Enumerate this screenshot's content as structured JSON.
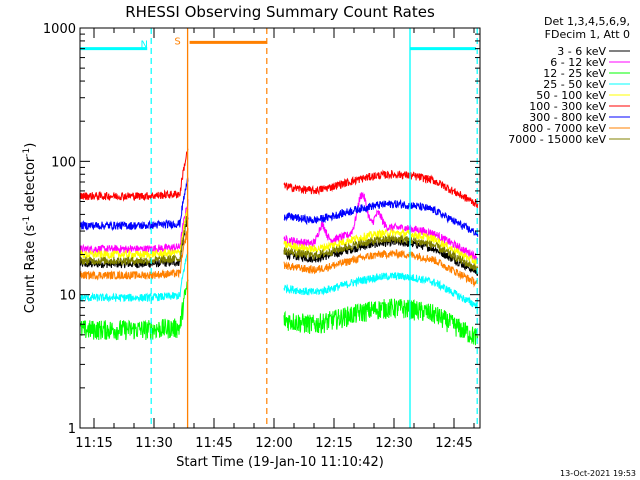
{
  "chart_data": {
    "type": "line",
    "title": "RHESSI Observing Summary Count Rates",
    "xlabel": "Start Time (19-Jan-10 11:10:42)",
    "ylabel": "Count Rate (s",
    "ylabel_sup": "-1",
    "ylabel_tail": " detector",
    "ylabel_close": ")",
    "yscale": "log",
    "ylim": [
      1,
      1000
    ],
    "xlim_minutes": [
      11.5,
      111.5
    ],
    "y_ticks": [
      1,
      10,
      100,
      1000
    ],
    "y_tick_labels": [
      "1",
      "10",
      "100",
      "1000"
    ],
    "x_ticks_minutes": [
      75,
      90,
      105,
      120,
      135,
      150,
      165
    ],
    "x_tick_labels": [
      "11:15",
      "11:30",
      "11:45",
      "12:00",
      "12:15",
      "12:30",
      "12:45"
    ],
    "legend_header": [
      "Det 1,3,4,5,6,9,",
      "FDecim 1, Att 0"
    ],
    "series": [
      {
        "name": "3 - 6 keV",
        "color": "#000000",
        "base": 17
      },
      {
        "name": "6 - 12 keV",
        "color": "#ff00ff",
        "base": 22
      },
      {
        "name": "12 - 25 keV",
        "color": "#00ff00",
        "base": 5.5
      },
      {
        "name": "25 - 50 keV",
        "color": "#00ffff",
        "base": 9.5
      },
      {
        "name": "50 - 100 keV",
        "color": "#ffff00",
        "base": 20
      },
      {
        "name": "100 - 300 keV",
        "color": "#ff0000",
        "base": 55
      },
      {
        "name": "300 - 800 keV",
        "color": "#0000ff",
        "base": 33
      },
      {
        "name": "800 - 7000 keV",
        "color": "#ff8000",
        "base": 14
      },
      {
        "name": "7000 - 15000 keV",
        "color": "#808000",
        "base": 18
      }
    ],
    "segments_minutes": [
      [
        11.6,
        38.6
      ],
      [
        62.5,
        111.0
      ]
    ],
    "night_bars": [
      {
        "label": "N",
        "start": 11.5,
        "end": 29.3,
        "color": "#00ffff",
        "level": 700
      },
      {
        "label": "",
        "start": 94.0,
        "end": 111.5,
        "color": "#00ffff",
        "level": 700
      }
    ],
    "saa_bars": [
      {
        "label": "S",
        "start": 38.4,
        "end": 58.2,
        "color": "#ff8000",
        "level": 780
      }
    ],
    "solid_vlines": [
      {
        "t": 38.4,
        "color": "#ff8000"
      },
      {
        "t": 94.0,
        "color": "#00ffff"
      }
    ],
    "dashed_vlines": [
      {
        "t": 29.3,
        "color": "#00ffff"
      },
      {
        "t": 58.2,
        "color": "#ff8000"
      },
      {
        "t": 110.8,
        "color": "#00ffff"
      }
    ]
  },
  "timestamp": "13-Oct-2021 19:53"
}
